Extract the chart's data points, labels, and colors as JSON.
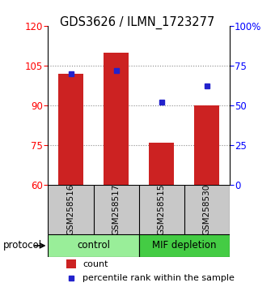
{
  "title": "GDS3626 / ILMN_1723277",
  "samples": [
    "GSM258516",
    "GSM258517",
    "GSM258515",
    "GSM258530"
  ],
  "bar_values": [
    102,
    110,
    76,
    90
  ],
  "percentile_values": [
    70,
    72,
    52,
    62
  ],
  "bar_color": "#cc2222",
  "dot_color": "#2222cc",
  "ylim_left": [
    60,
    120
  ],
  "ylim_right": [
    0,
    100
  ],
  "yticks_left": [
    60,
    75,
    90,
    105,
    120
  ],
  "yticks_right": [
    0,
    25,
    50,
    75,
    100
  ],
  "groups": [
    {
      "label": "control",
      "indices": [
        0,
        1
      ],
      "color": "#99ee99"
    },
    {
      "label": "MIF depletion",
      "indices": [
        2,
        3
      ],
      "color": "#44cc44"
    }
  ],
  "protocol_label": "protocol",
  "legend_count_label": "count",
  "legend_percentile_label": "percentile rank within the sample",
  "background_label": "#c8c8c8",
  "grid_color": "#888888",
  "grid_linestyle": "dotted"
}
